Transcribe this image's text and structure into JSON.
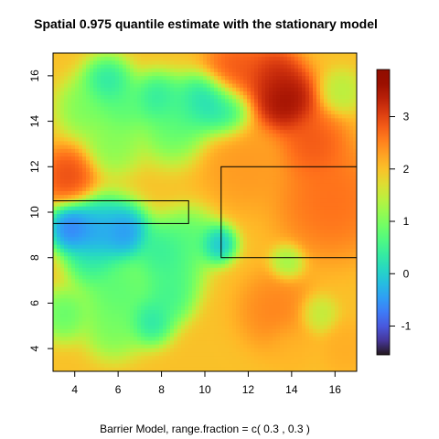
{
  "chart_data": {
    "type": "heatmap",
    "title": "Spatial 0.975 quantile estimate with the stationary model",
    "xlabel": "Barrier Model, range.fraction = c( 0.3 ,  0.3 )",
    "ylabel": "",
    "xlim": [
      3,
      17
    ],
    "ylim": [
      3,
      17
    ],
    "x_ticks": [
      4,
      6,
      8,
      10,
      12,
      14,
      16
    ],
    "y_ticks": [
      4,
      6,
      8,
      10,
      12,
      14,
      16
    ],
    "colorbar": {
      "range": [
        -1.55,
        3.9
      ],
      "ticks": [
        -1,
        0,
        1,
        2,
        3
      ],
      "colormap": "turbo"
    },
    "field": {
      "base": 2.0,
      "features": [
        {
          "x": 3.8,
          "y": 9.3,
          "v": -1.2,
          "s": 0.55
        },
        {
          "x": 4.8,
          "y": 9.0,
          "v": -0.9,
          "s": 0.7
        },
        {
          "x": 6.3,
          "y": 9.1,
          "v": -1.1,
          "s": 0.6
        },
        {
          "x": 5.5,
          "y": 9.2,
          "v": -0.3,
          "s": 0.8
        },
        {
          "x": 4.8,
          "y": 7.8,
          "v": 0.2,
          "s": 0.6
        },
        {
          "x": 8.0,
          "y": 8.3,
          "v": 0.1,
          "s": 0.7
        },
        {
          "x": 10.6,
          "y": 8.6,
          "v": -0.6,
          "s": 0.45
        },
        {
          "x": 9.3,
          "y": 8.8,
          "v": 0.5,
          "s": 0.7
        },
        {
          "x": 7.5,
          "y": 5.2,
          "v": -0.1,
          "s": 0.55
        },
        {
          "x": 8.3,
          "y": 6.2,
          "v": 0.3,
          "s": 0.6
        },
        {
          "x": 6.0,
          "y": 6.5,
          "v": 0.5,
          "s": 0.9
        },
        {
          "x": 3.5,
          "y": 5.5,
          "v": 0.6,
          "s": 0.6
        },
        {
          "x": 5.8,
          "y": 4.9,
          "v": 0.8,
          "s": 0.7
        },
        {
          "x": 8.5,
          "y": 7.2,
          "v": 0.4,
          "s": 0.7
        },
        {
          "x": 5.5,
          "y": 15.7,
          "v": -0.1,
          "s": 0.6
        },
        {
          "x": 7.8,
          "y": 15.0,
          "v": 0.0,
          "s": 0.6
        },
        {
          "x": 10.0,
          "y": 14.9,
          "v": -0.3,
          "s": 0.6
        },
        {
          "x": 10.9,
          "y": 14.5,
          "v": 0.0,
          "s": 0.6
        },
        {
          "x": 9.3,
          "y": 14.6,
          "v": 0.3,
          "s": 0.7
        },
        {
          "x": 6.2,
          "y": 14.6,
          "v": 0.5,
          "s": 0.7
        },
        {
          "x": 8.5,
          "y": 13.7,
          "v": 0.6,
          "s": 0.8
        },
        {
          "x": 4.5,
          "y": 14.6,
          "v": 0.8,
          "s": 0.7
        },
        {
          "x": 5.8,
          "y": 13.0,
          "v": 0.9,
          "s": 0.7
        },
        {
          "x": 13.7,
          "y": 14.9,
          "v": 3.9,
          "s": 0.75
        },
        {
          "x": 13.2,
          "y": 15.9,
          "v": 3.4,
          "s": 0.7
        },
        {
          "x": 11.5,
          "y": 16.2,
          "v": 3.0,
          "s": 0.8
        },
        {
          "x": 3.7,
          "y": 11.6,
          "v": 3.1,
          "s": 0.65
        },
        {
          "x": 16.3,
          "y": 15.3,
          "v": 1.3,
          "s": 0.5
        },
        {
          "x": 13.8,
          "y": 7.8,
          "v": 1.0,
          "s": 0.4
        },
        {
          "x": 15.2,
          "y": 5.5,
          "v": 1.3,
          "s": 0.45
        },
        {
          "x": 13.3,
          "y": 5.7,
          "v": 2.6,
          "s": 0.9
        },
        {
          "x": 14.0,
          "y": 4.1,
          "v": 2.1,
          "s": 0.6
        },
        {
          "x": 16.5,
          "y": 4.0,
          "v": 2.2,
          "s": 0.6
        },
        {
          "x": 15.8,
          "y": 10.5,
          "v": 2.8,
          "s": 1.3
        },
        {
          "x": 11.8,
          "y": 12.0,
          "v": 2.4,
          "s": 1.0
        },
        {
          "x": 15.0,
          "y": 13.0,
          "v": 3.0,
          "s": 0.8
        }
      ]
    },
    "barrier_boxes": [
      {
        "x0": 3.0,
        "x1": 9.25,
        "y0": 9.5,
        "y1": 10.5
      },
      {
        "x0": 10.75,
        "x1": 17.0,
        "y0": 8.0,
        "y1": 12.0
      }
    ]
  }
}
